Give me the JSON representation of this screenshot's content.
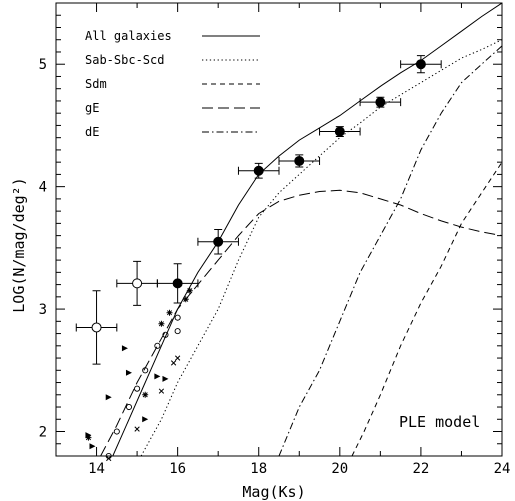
{
  "chart_data": {
    "type": "line",
    "title": "",
    "xlabel": "Mag(Ks)",
    "ylabel": "LOG(N/mag/deg²)",
    "xlim": [
      13,
      24
    ],
    "ylim": [
      1.8,
      5.5
    ],
    "x_ticks": [
      14,
      16,
      18,
      20,
      22,
      24
    ],
    "y_ticks": [
      2,
      3,
      4,
      5
    ],
    "x_tick_labels": [
      "14",
      "16",
      "18",
      "20",
      "22",
      "24"
    ],
    "y_tick_labels": [
      "2",
      "3",
      "4",
      "5"
    ],
    "grid": false,
    "legend_position": "top-left",
    "annotation": "PLE model",
    "series": [
      {
        "name": "All galaxies",
        "style": "solid",
        "x": [
          14.4,
          14.8,
          15.2,
          15.6,
          16.0,
          16.5,
          17.0,
          17.5,
          18.0,
          18.5,
          19.0,
          19.5,
          20.0,
          20.5,
          21.0,
          21.5,
          22.0,
          22.5,
          23.0,
          23.5,
          24.0
        ],
        "y": [
          1.8,
          2.1,
          2.4,
          2.7,
          3.0,
          3.3,
          3.55,
          3.85,
          4.1,
          4.25,
          4.38,
          4.48,
          4.58,
          4.7,
          4.82,
          4.93,
          5.03,
          5.15,
          5.27,
          5.39,
          5.5
        ]
      },
      {
        "name": "Sab-Sbc-Scd",
        "style": "dotted",
        "x": [
          15.1,
          15.6,
          16.0,
          16.5,
          17.0,
          17.5,
          18.0,
          18.5,
          19.0,
          19.5,
          20.0,
          20.5,
          21.0,
          21.5,
          22.0,
          22.5,
          23.0,
          23.5,
          24.0
        ],
        "y": [
          1.8,
          2.1,
          2.4,
          2.7,
          3.0,
          3.4,
          3.75,
          3.95,
          4.1,
          4.25,
          4.4,
          4.52,
          4.65,
          4.75,
          4.85,
          4.95,
          5.05,
          5.12,
          5.2
        ]
      },
      {
        "name": "Sdm",
        "style": "dashed",
        "x": [
          20.3,
          20.6,
          21.0,
          21.5,
          22.0,
          22.5,
          23.0,
          23.5,
          24.0
        ],
        "y": [
          1.8,
          2.0,
          2.3,
          2.7,
          3.05,
          3.35,
          3.7,
          3.95,
          4.2
        ]
      },
      {
        "name": "gE",
        "style": "longdash",
        "x": [
          14.1,
          14.5,
          15.0,
          15.5,
          16.0,
          16.5,
          17.0,
          17.5,
          18.0,
          18.5,
          19.0,
          19.5,
          20.0,
          20.5,
          21.0,
          21.5,
          22.0,
          22.5,
          23.0,
          23.5,
          24.0
        ],
        "y": [
          1.8,
          2.05,
          2.4,
          2.7,
          3.0,
          3.2,
          3.4,
          3.6,
          3.78,
          3.88,
          3.93,
          3.96,
          3.97,
          3.95,
          3.9,
          3.85,
          3.78,
          3.72,
          3.67,
          3.63,
          3.6
        ]
      },
      {
        "name": "dE",
        "style": "dashdot",
        "x": [
          18.5,
          19.0,
          19.5,
          20.0,
          20.5,
          21.0,
          21.5,
          22.0,
          22.5,
          23.0,
          23.5,
          24.0
        ],
        "y": [
          1.8,
          2.2,
          2.5,
          2.9,
          3.3,
          3.6,
          3.9,
          4.3,
          4.6,
          4.85,
          5.0,
          5.15
        ]
      }
    ],
    "filled_points": [
      {
        "x": 16.0,
        "y": 3.21,
        "xerr": 0.5,
        "yerr": 0.16
      },
      {
        "x": 17.0,
        "y": 3.55,
        "xerr": 0.5,
        "yerr": 0.1
      },
      {
        "x": 18.0,
        "y": 4.13,
        "xerr": 0.5,
        "yerr": 0.06
      },
      {
        "x": 19.0,
        "y": 4.21,
        "xerr": 0.5,
        "yerr": 0.05
      },
      {
        "x": 20.0,
        "y": 4.45,
        "xerr": 0.5,
        "yerr": 0.04
      },
      {
        "x": 21.0,
        "y": 4.69,
        "xerr": 0.5,
        "yerr": 0.04
      },
      {
        "x": 22.0,
        "y": 5.0,
        "xerr": 0.5,
        "yerr": 0.07
      }
    ],
    "open_points_large": [
      {
        "x": 14.0,
        "y": 2.85,
        "xerr": 0.5,
        "yerr": 0.3
      },
      {
        "x": 15.0,
        "y": 3.21,
        "xerr": 0.5,
        "yerr": 0.18
      }
    ],
    "small_open_circles": [
      {
        "x": 14.3,
        "y": 1.8
      },
      {
        "x": 14.5,
        "y": 2.0
      },
      {
        "x": 14.8,
        "y": 2.2
      },
      {
        "x": 15.0,
        "y": 2.35
      },
      {
        "x": 15.2,
        "y": 2.5
      },
      {
        "x": 15.5,
        "y": 2.7
      },
      {
        "x": 15.7,
        "y": 2.79
      },
      {
        "x": 16.0,
        "y": 2.82
      },
      {
        "x": 16.0,
        "y": 2.93
      }
    ],
    "asterisks": [
      {
        "x": 13.8,
        "y": 1.95
      },
      {
        "x": 15.2,
        "y": 2.3
      },
      {
        "x": 15.6,
        "y": 2.88
      },
      {
        "x": 15.8,
        "y": 2.97
      },
      {
        "x": 16.2,
        "y": 3.08
      },
      {
        "x": 16.3,
        "y": 3.15
      }
    ],
    "crosses": [
      {
        "x": 14.3,
        "y": 1.78
      },
      {
        "x": 15.0,
        "y": 2.02
      },
      {
        "x": 15.6,
        "y": 2.33
      },
      {
        "x": 15.9,
        "y": 2.56
      },
      {
        "x": 16.0,
        "y": 2.6
      }
    ],
    "triangle_markers": [
      {
        "x": 13.8,
        "y": 1.97
      },
      {
        "x": 13.9,
        "y": 1.88
      },
      {
        "x": 14.3,
        "y": 2.28
      },
      {
        "x": 14.7,
        "y": 2.68
      },
      {
        "x": 14.8,
        "y": 2.48
      },
      {
        "x": 15.5,
        "y": 2.45
      },
      {
        "x": 15.7,
        "y": 2.43
      },
      {
        "x": 15.2,
        "y": 2.1
      }
    ]
  }
}
